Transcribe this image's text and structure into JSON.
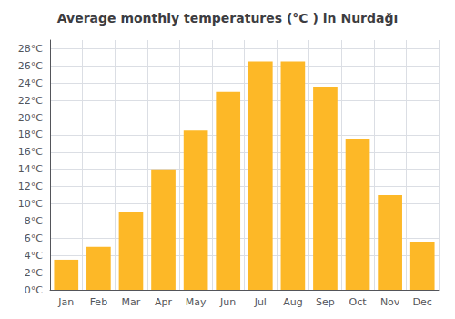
{
  "chart_data": {
    "type": "bar",
    "title": "Average monthly temperatures (°C ) in Nurdağı",
    "categories": [
      "Jan",
      "Feb",
      "Mar",
      "Apr",
      "May",
      "Jun",
      "Jul",
      "Aug",
      "Sep",
      "Oct",
      "Nov",
      "Dec"
    ],
    "values": [
      3.5,
      5.0,
      9.0,
      14.0,
      18.5,
      23.0,
      26.5,
      26.5,
      23.5,
      17.5,
      11.0,
      5.5
    ],
    "color": "#FDB827",
    "ylim": [
      0,
      29
    ],
    "yticks": [
      {
        "value": 0,
        "label": "0°C"
      },
      {
        "value": 2,
        "label": "2°C"
      },
      {
        "value": 4,
        "label": "4°C"
      },
      {
        "value": 6,
        "label": "6°C"
      },
      {
        "value": 8,
        "label": "8°C"
      },
      {
        "value": 10,
        "label": "10°C"
      },
      {
        "value": 12,
        "label": "12°C"
      },
      {
        "value": 14,
        "label": "14°C"
      },
      {
        "value": 16,
        "label": "16°C"
      },
      {
        "value": 18,
        "label": "18°C"
      },
      {
        "value": 20,
        "label": "20°C"
      },
      {
        "value": 22,
        "label": "22°C"
      },
      {
        "value": 24,
        "label": "24°C"
      },
      {
        "value": 26,
        "label": "26°C"
      },
      {
        "value": 28,
        "label": "28°C"
      }
    ],
    "grid": true
  }
}
